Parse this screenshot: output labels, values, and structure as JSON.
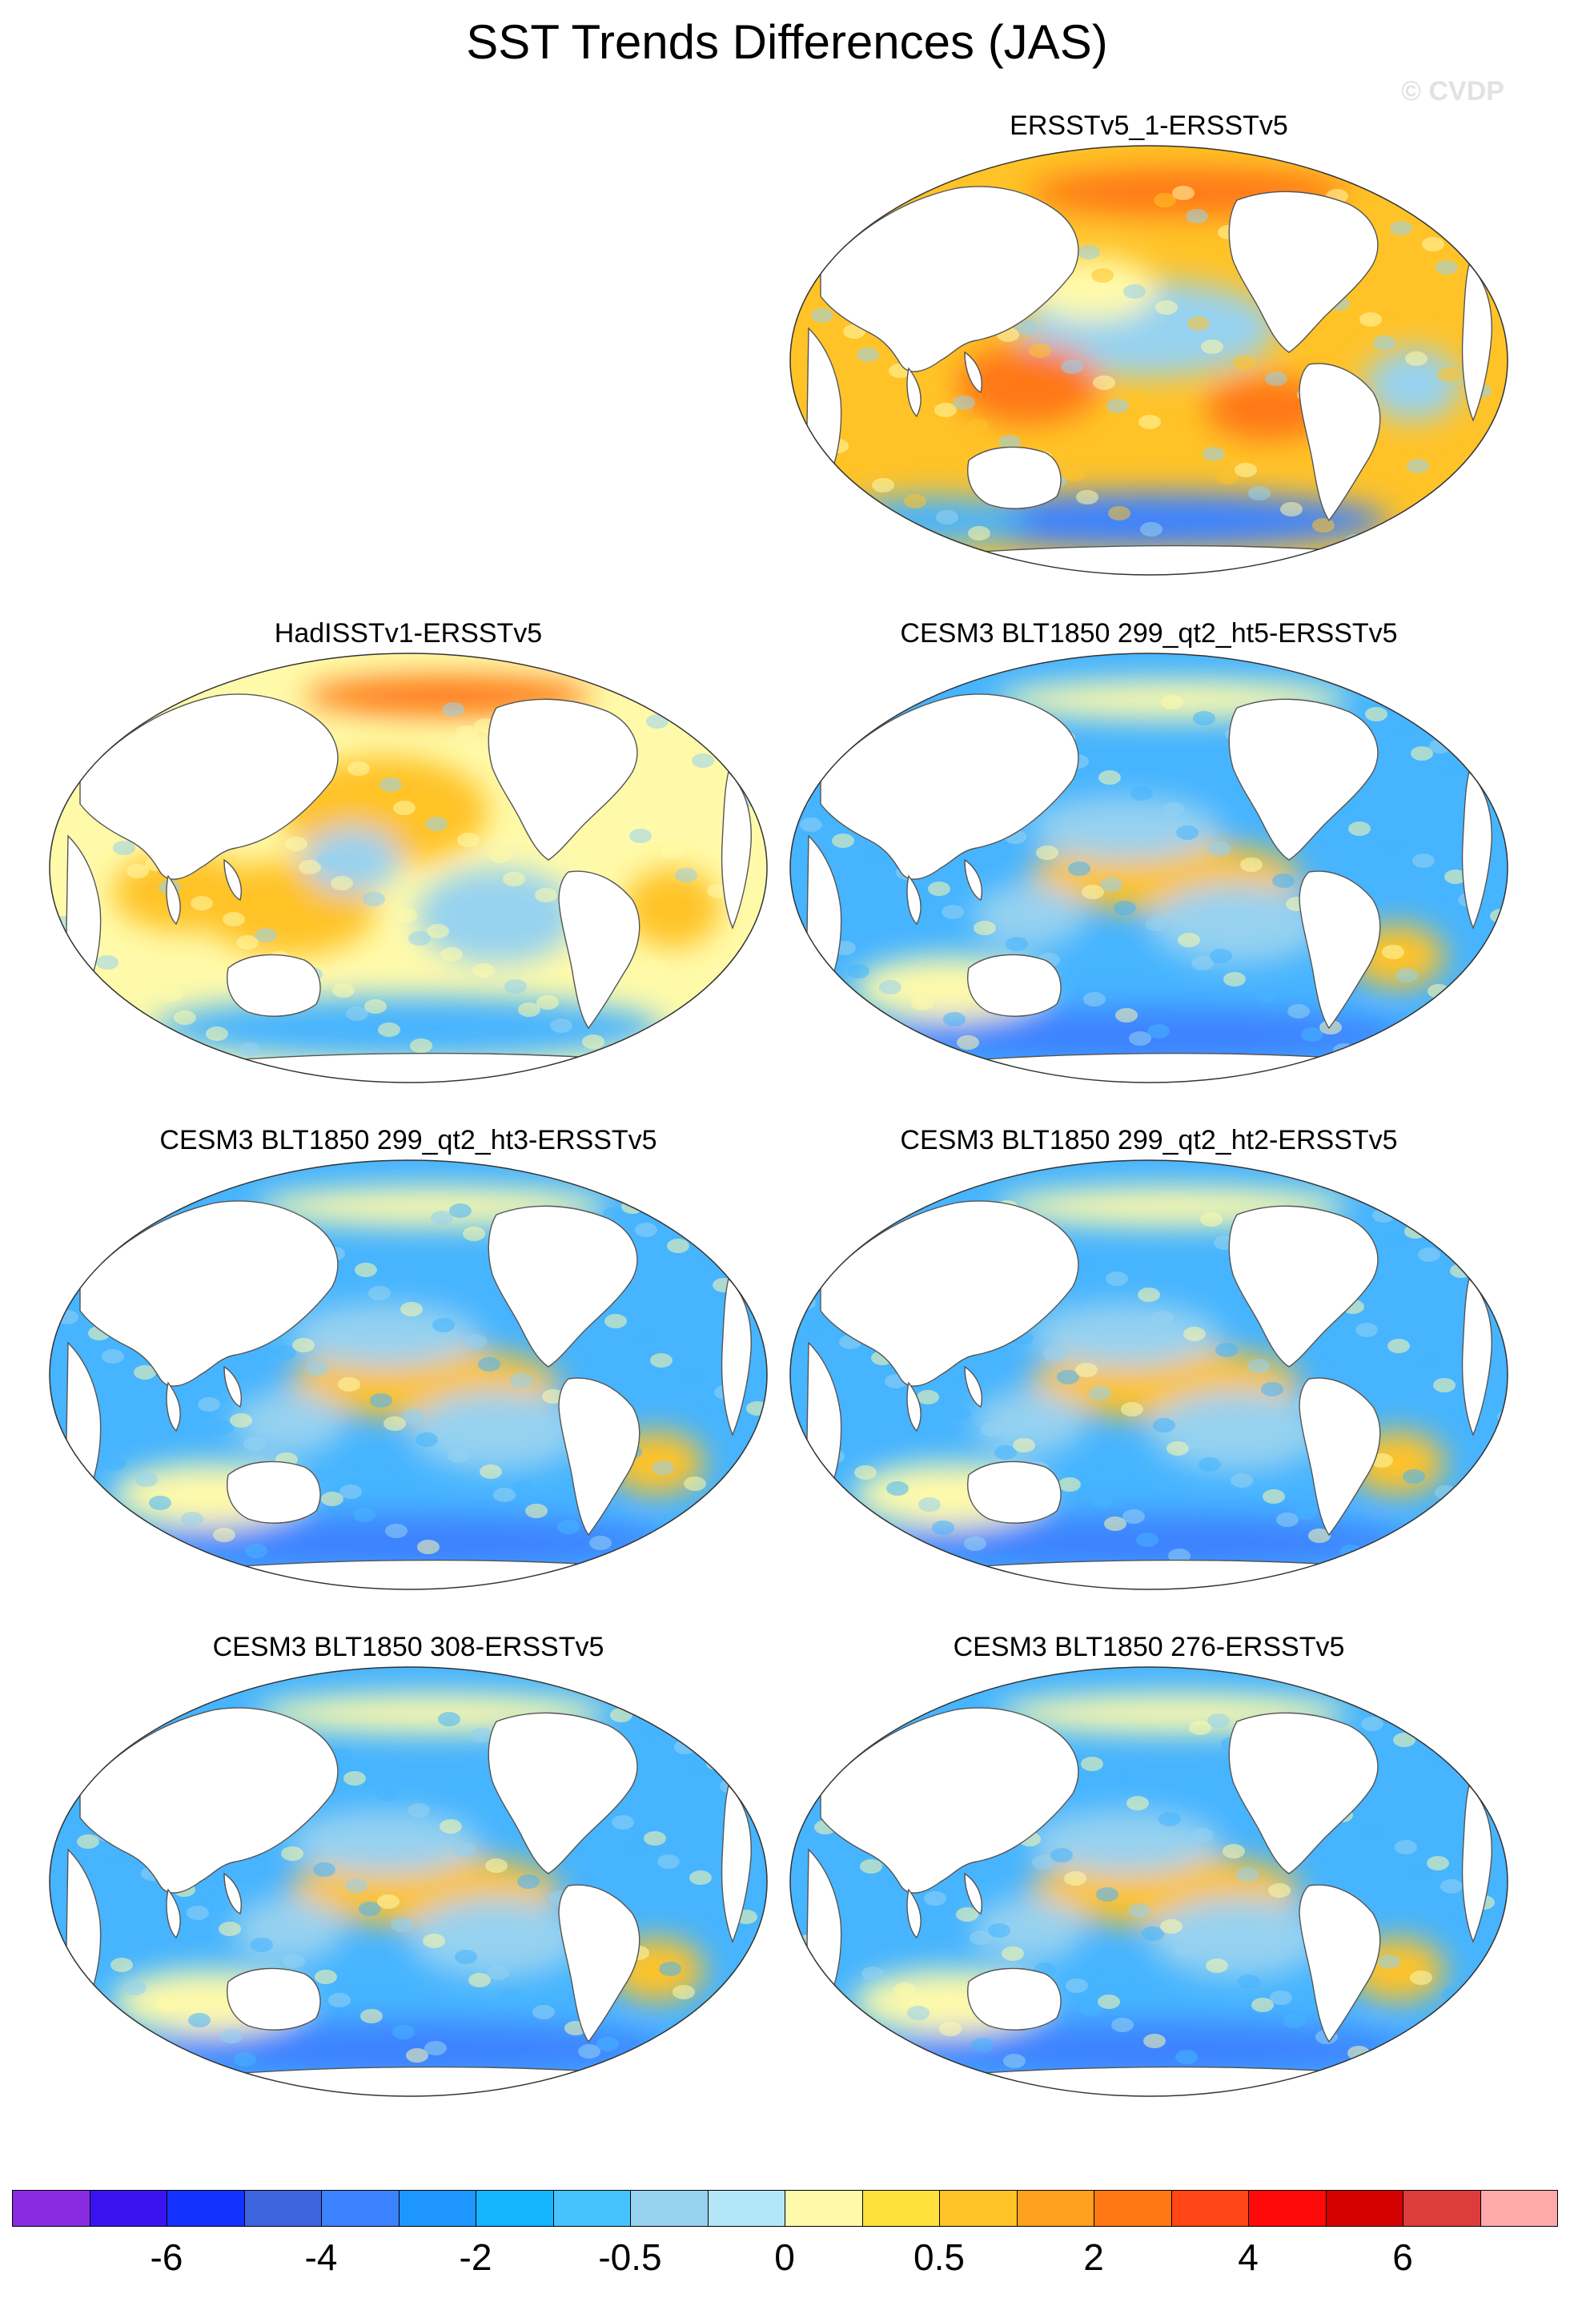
{
  "title": "SST Trends Differences (JAS)",
  "watermark": "© CVDP",
  "panels": [
    {
      "title": "ERSSTv5_1-ERSSTv5",
      "position": "top-right",
      "dominant": "warm"
    },
    {
      "title": "HadISSTv1-ERSSTv5",
      "position": "row2-left",
      "dominant": "mixed-warm"
    },
    {
      "title": "CESM3 BLT1850 299_qt2_ht5-ERSSTv5",
      "position": "row2-right",
      "dominant": "cool"
    },
    {
      "title": "CESM3 BLT1850 299_qt2_ht3-ERSSTv5",
      "position": "row3-left",
      "dominant": "cool"
    },
    {
      "title": "CESM3 BLT1850 299_qt2_ht2-ERSSTv5",
      "position": "row3-right",
      "dominant": "cool"
    },
    {
      "title": "CESM3 BLT1850 308-ERSSTv5",
      "position": "row4-left",
      "dominant": "cool"
    },
    {
      "title": "CESM3 BLT1850 276-ERSSTv5",
      "position": "row4-right",
      "dominant": "cool"
    }
  ],
  "colorbar": {
    "colors": [
      "#8a2be2",
      "#3a14f0",
      "#1432ff",
      "#3c64dc",
      "#3c82ff",
      "#1e96ff",
      "#14b4ff",
      "#46c3ff",
      "#96d2f0",
      "#b4e6fa",
      "#fffaaa",
      "#ffe13c",
      "#ffc328",
      "#ffa01e",
      "#ff7814",
      "#ff4614",
      "#ff0a0a",
      "#d20000",
      "#dc3c3c",
      "#ffaaaa"
    ],
    "labels": [
      "-6",
      "-4",
      "-2",
      "-0.5",
      "0",
      "0.5",
      "2",
      "4",
      "6"
    ],
    "label_boundaries": [
      2,
      4,
      6,
      8,
      10,
      12,
      14,
      16,
      18
    ]
  },
  "palette": {
    "ocean_cool": "#46b4ff",
    "ocean_cool_light": "#96d2f0",
    "ocean_deep": "#3c82ff",
    "ocean_warm": "#ffc328",
    "ocean_warm_light": "#fffaaa",
    "ocean_hot": "#ff7814",
    "land": "#ffffff",
    "coast": "#555555"
  }
}
